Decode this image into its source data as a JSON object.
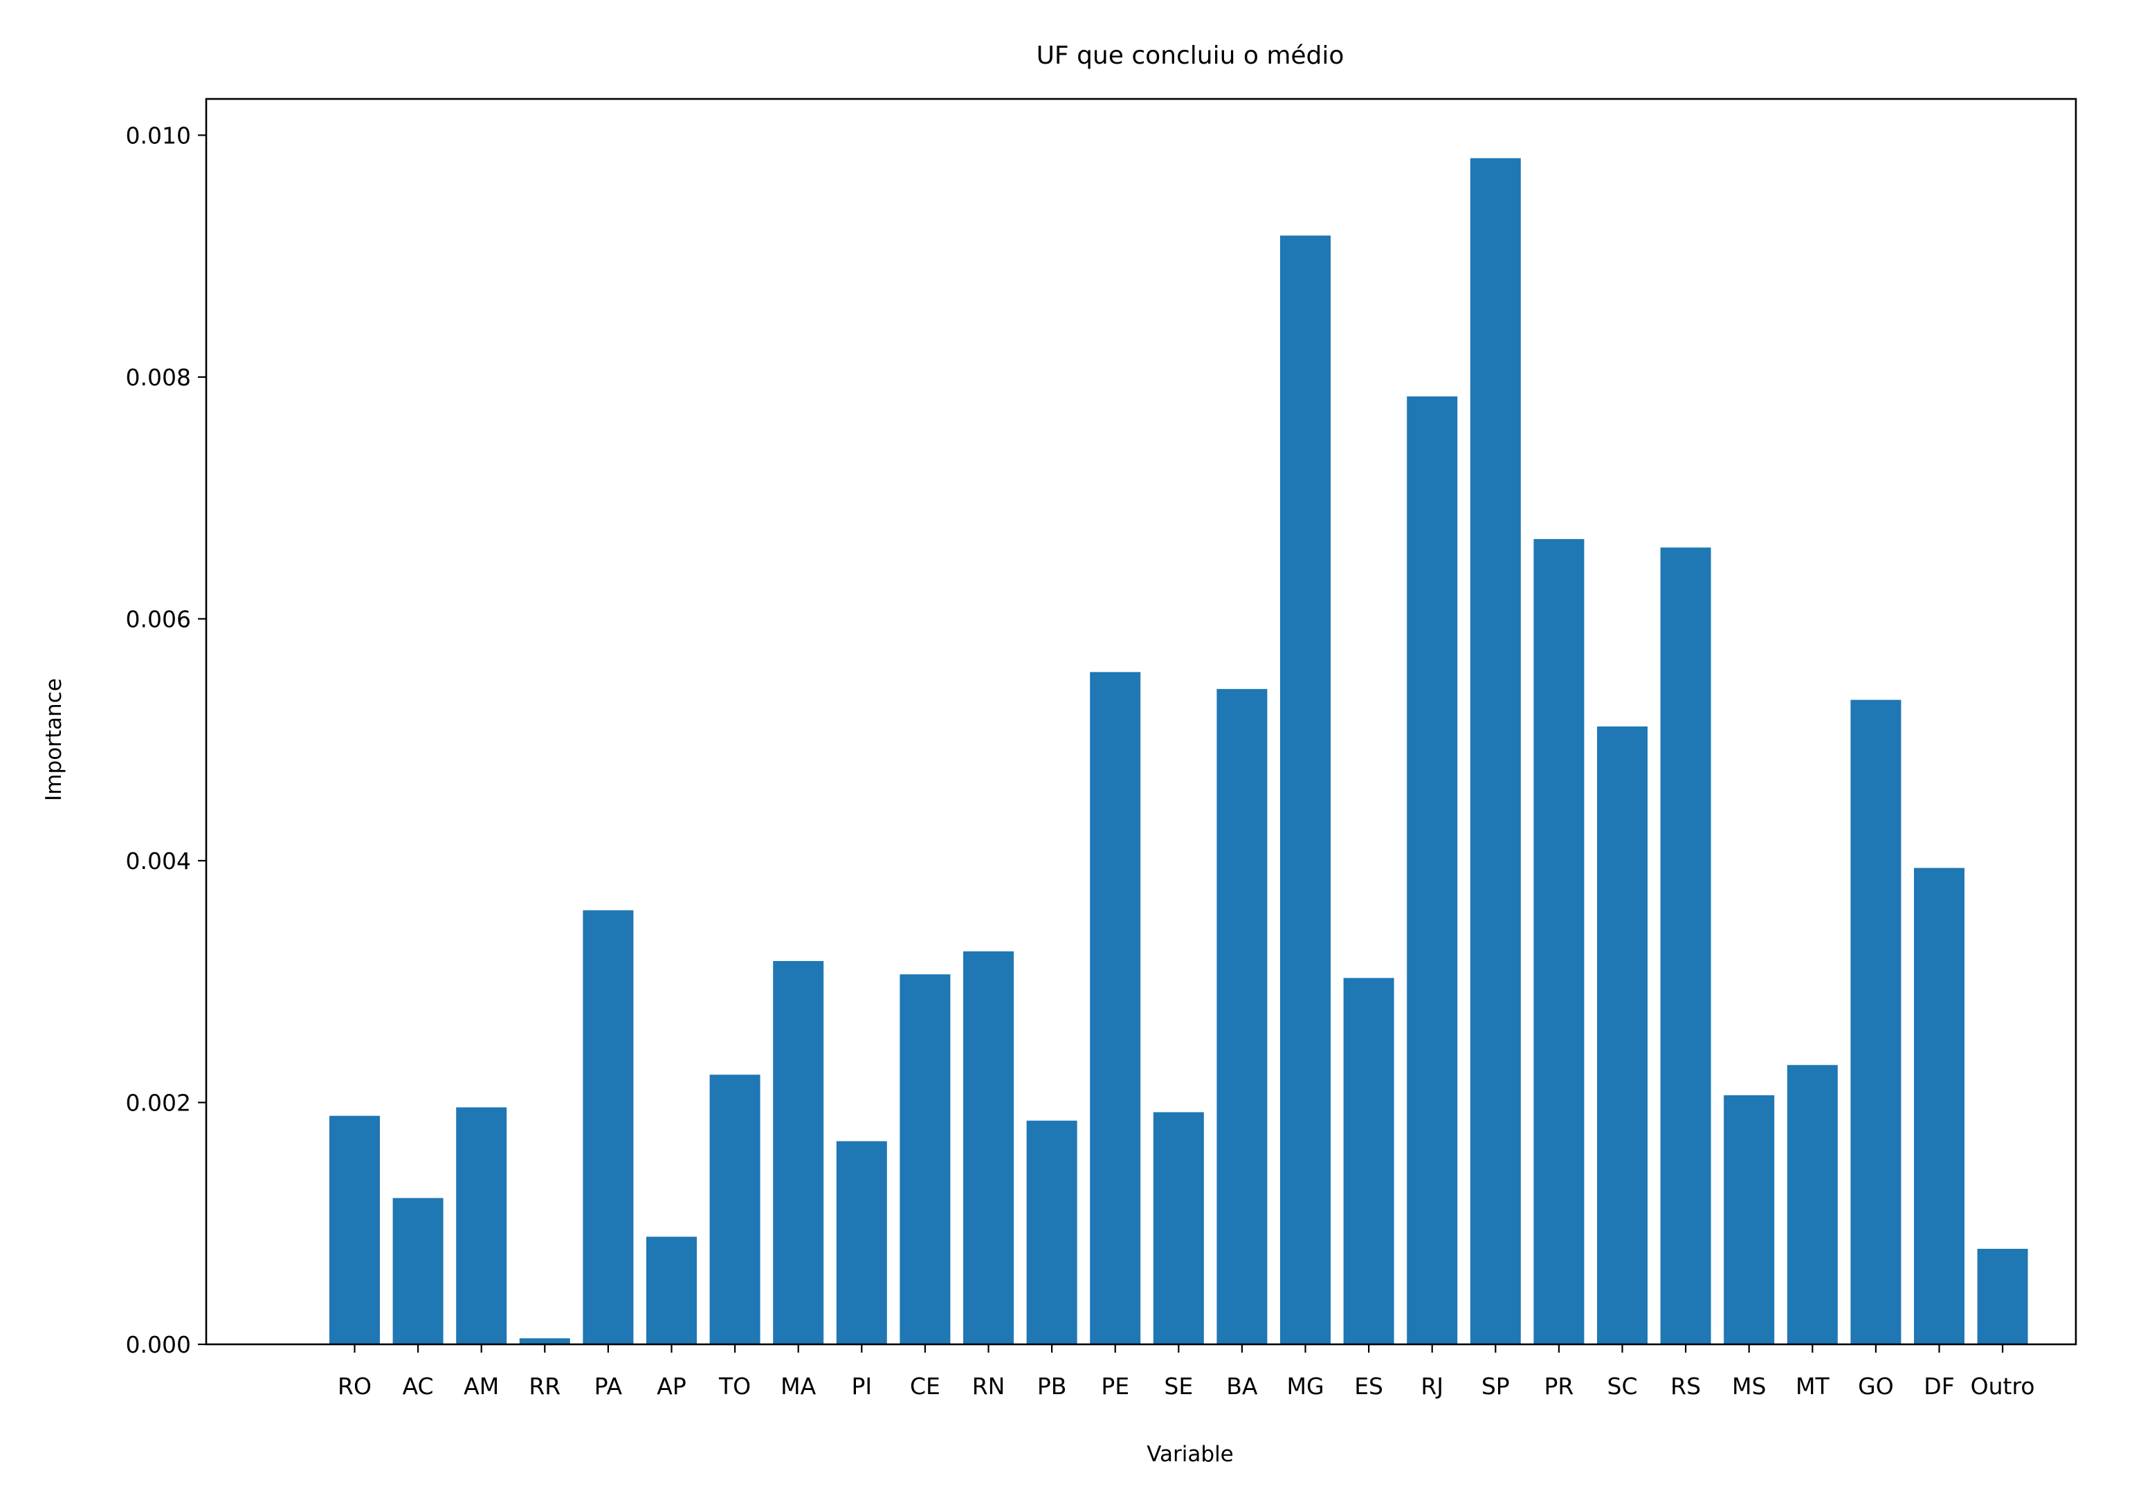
{
  "chart_data": {
    "type": "bar",
    "title": "UF que concluiu o médio",
    "xlabel": "Variable",
    "ylabel": "Importance",
    "categories": [
      "RO",
      "AC",
      "AM",
      "RR",
      "PA",
      "AP",
      "TO",
      "MA",
      "PI",
      "CE",
      "RN",
      "PB",
      "PE",
      "SE",
      "BA",
      "MG",
      "ES",
      "RJ",
      "SP",
      "PR",
      "SC",
      "RS",
      "MS",
      "MT",
      "GO",
      "DF",
      "Outro"
    ],
    "values": [
      0.00189,
      0.00121,
      0.00196,
      5e-05,
      0.00359,
      0.00089,
      0.00223,
      0.00317,
      0.00168,
      0.00306,
      0.00325,
      0.00185,
      0.00556,
      0.00192,
      0.00542,
      0.00917,
      0.00303,
      0.00784,
      0.00981,
      0.00666,
      0.00511,
      0.00659,
      0.00206,
      0.00231,
      0.00533,
      0.00394,
      0.00079
    ],
    "ylim": [
      0,
      0.0103
    ],
    "yticks": [
      0.0,
      0.002,
      0.004,
      0.006,
      0.008,
      0.01
    ],
    "ytick_labels": [
      "0.000",
      "0.002",
      "0.004",
      "0.006",
      "0.008",
      "0.010"
    ],
    "bar_color": "#1f77b4",
    "grid": false,
    "legend": "none"
  }
}
